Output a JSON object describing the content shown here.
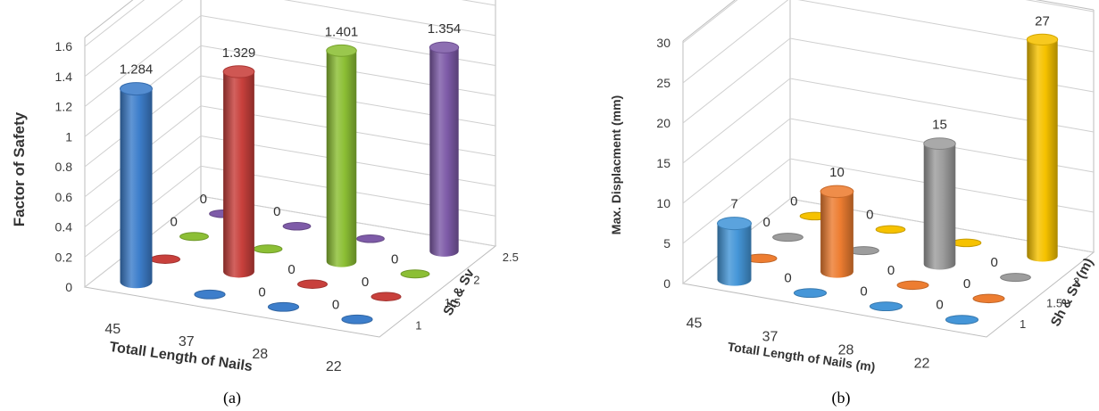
{
  "chart_data": [
    {
      "type": "bar",
      "panel_label": "(a)",
      "categories": [
        "45",
        "37",
        "28",
        "22"
      ],
      "depth_categories": [
        "1",
        "1.5",
        "2",
        "2.5"
      ],
      "xlabel": "Totall Length of Nails",
      "ylabel": "Factor of Safety",
      "zlabel": "Sh & Sv",
      "ylim": [
        0,
        1.6
      ],
      "yticks": [
        "0",
        "0.2",
        "0.4",
        "0.6",
        "0.8",
        "1",
        "1.2",
        "1.4",
        "1.6"
      ],
      "grid": true,
      "series": [
        {
          "values": [
            1.284,
            0,
            0,
            0
          ],
          "labels": [
            "1.284",
            "",
            "0",
            "0"
          ],
          "color": "#3d7ecb"
        },
        {
          "values": [
            0,
            1.329,
            0,
            0
          ],
          "labels": [
            "0",
            "1.329",
            "0",
            "0"
          ],
          "color": "#c8403c"
        },
        {
          "values": [
            0,
            0,
            1.401,
            0
          ],
          "labels": [
            "0",
            "0",
            "1.401",
            "0"
          ],
          "color": "#8cbf35"
        },
        {
          "values": [
            0,
            0,
            0,
            1.354
          ],
          "labels": [
            "0",
            "0",
            "",
            "1.354"
          ],
          "color": "#7e5ba8"
        }
      ]
    },
    {
      "type": "bar",
      "panel_label": "(b)",
      "categories": [
        "45",
        "37",
        "28",
        "22"
      ],
      "depth_categories": [
        "1",
        "1.5",
        "2",
        "2.5"
      ],
      "xlabel": "Totall Length of Nails (m)",
      "ylabel": "Max. Displacment (mm)",
      "zlabel": "Sh & Sv (m)",
      "ylim": [
        0,
        30
      ],
      "yticks": [
        "0",
        "5",
        "10",
        "15",
        "20",
        "25",
        "30"
      ],
      "grid": true,
      "series": [
        {
          "values": [
            7,
            0,
            0,
            0
          ],
          "labels": [
            "7",
            "0",
            "0",
            "0"
          ],
          "color": "#4596d8"
        },
        {
          "values": [
            0,
            10,
            0,
            0
          ],
          "labels": [
            "0",
            "10",
            "0",
            "0"
          ],
          "color": "#ed7d31"
        },
        {
          "values": [
            0,
            0,
            15,
            0
          ],
          "labels": [
            "0",
            "0",
            "15",
            "0"
          ],
          "color": "#9d9d9d"
        },
        {
          "values": [
            0,
            0,
            0,
            27
          ],
          "labels": [
            "0",
            "0",
            "0",
            "27"
          ],
          "color": "#f6c200"
        }
      ]
    }
  ]
}
